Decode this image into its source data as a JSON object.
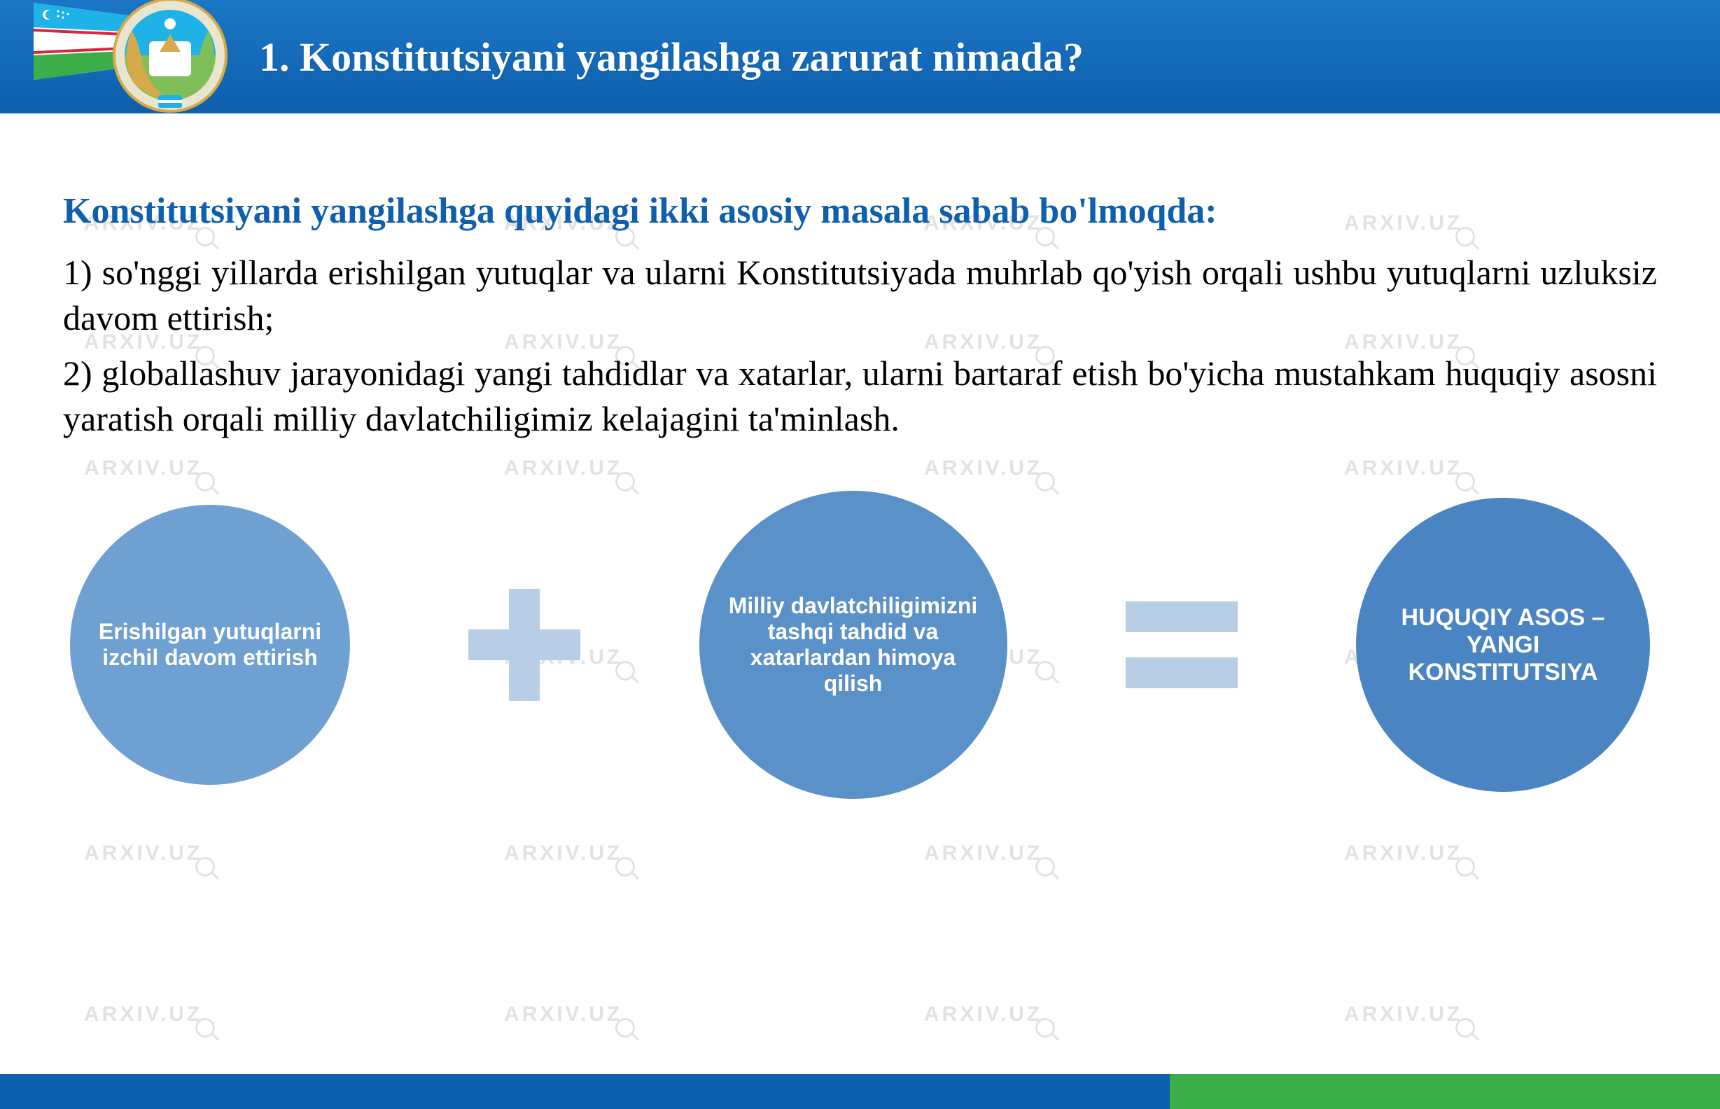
{
  "watermark": {
    "text": "ARXIV.UZ",
    "color": "#bfbfbf",
    "fontsize": 30
  },
  "header": {
    "title": "1. Konstitutsiyani yangilashga zarurat nimada?",
    "bg_gradient": [
      "#1b76c5",
      "#0e5fad"
    ],
    "title_color": "#ffffff",
    "title_fontsize": 58
  },
  "subtitle": {
    "text": "Konstitutsiyani yangilashga quyidagi ikki asosiy masala sabab bo'lmoqda:",
    "color": "#0e5fad",
    "fontsize": 52
  },
  "paragraphs": {
    "p1": "1) so'nggi yillarda erishilgan yutuqlar va ularni Konstitutsiyada muhrlab qo'yish orqali ushbu yutuqlarni uzluksiz davom ettirish;",
    "p2": "2) globallashuv jarayonidagi yangi tahdidlar va xatarlar, ularni bartaraf etish bo'yicha mustahkam huquqiy asosni yaratish orqali milliy davlatchiligimiz kelajagini ta'minlash.",
    "color": "#000000",
    "fontsize": 50
  },
  "equation": {
    "type": "infographic",
    "operator_color": "#b8cee6",
    "circles": {
      "c1": {
        "text": "Erishilgan yutuqlarni izchil davom ettirish",
        "bg": "#6fa0d2",
        "diameter": 400,
        "fontsize": 32,
        "text_color": "#ffffff"
      },
      "c2": {
        "text": "Milliy davlatchiligimizni tashqi tahdid va xatarlardan himoya qilish",
        "bg": "#5b91c9",
        "diameter": 440,
        "fontsize": 32,
        "text_color": "#ffffff"
      },
      "c3": {
        "text": "HUQUQIY ASOS – YANGI KONSTITUTSIYA",
        "bg": "#4a84c2",
        "diameter": 420,
        "fontsize": 34,
        "text_color": "#ffffff"
      }
    }
  },
  "footer": {
    "blue": "#0e5fad",
    "green": "#3cae49",
    "blue_width_pct": 68
  },
  "emblems": {
    "flag_colors": {
      "top": "#1eb2e6",
      "mid": "#ffffff",
      "bot": "#3cae49",
      "stripe": "#d7263d"
    },
    "coat_primary": "#1eb2e6",
    "coat_gold": "#d6a94a"
  }
}
